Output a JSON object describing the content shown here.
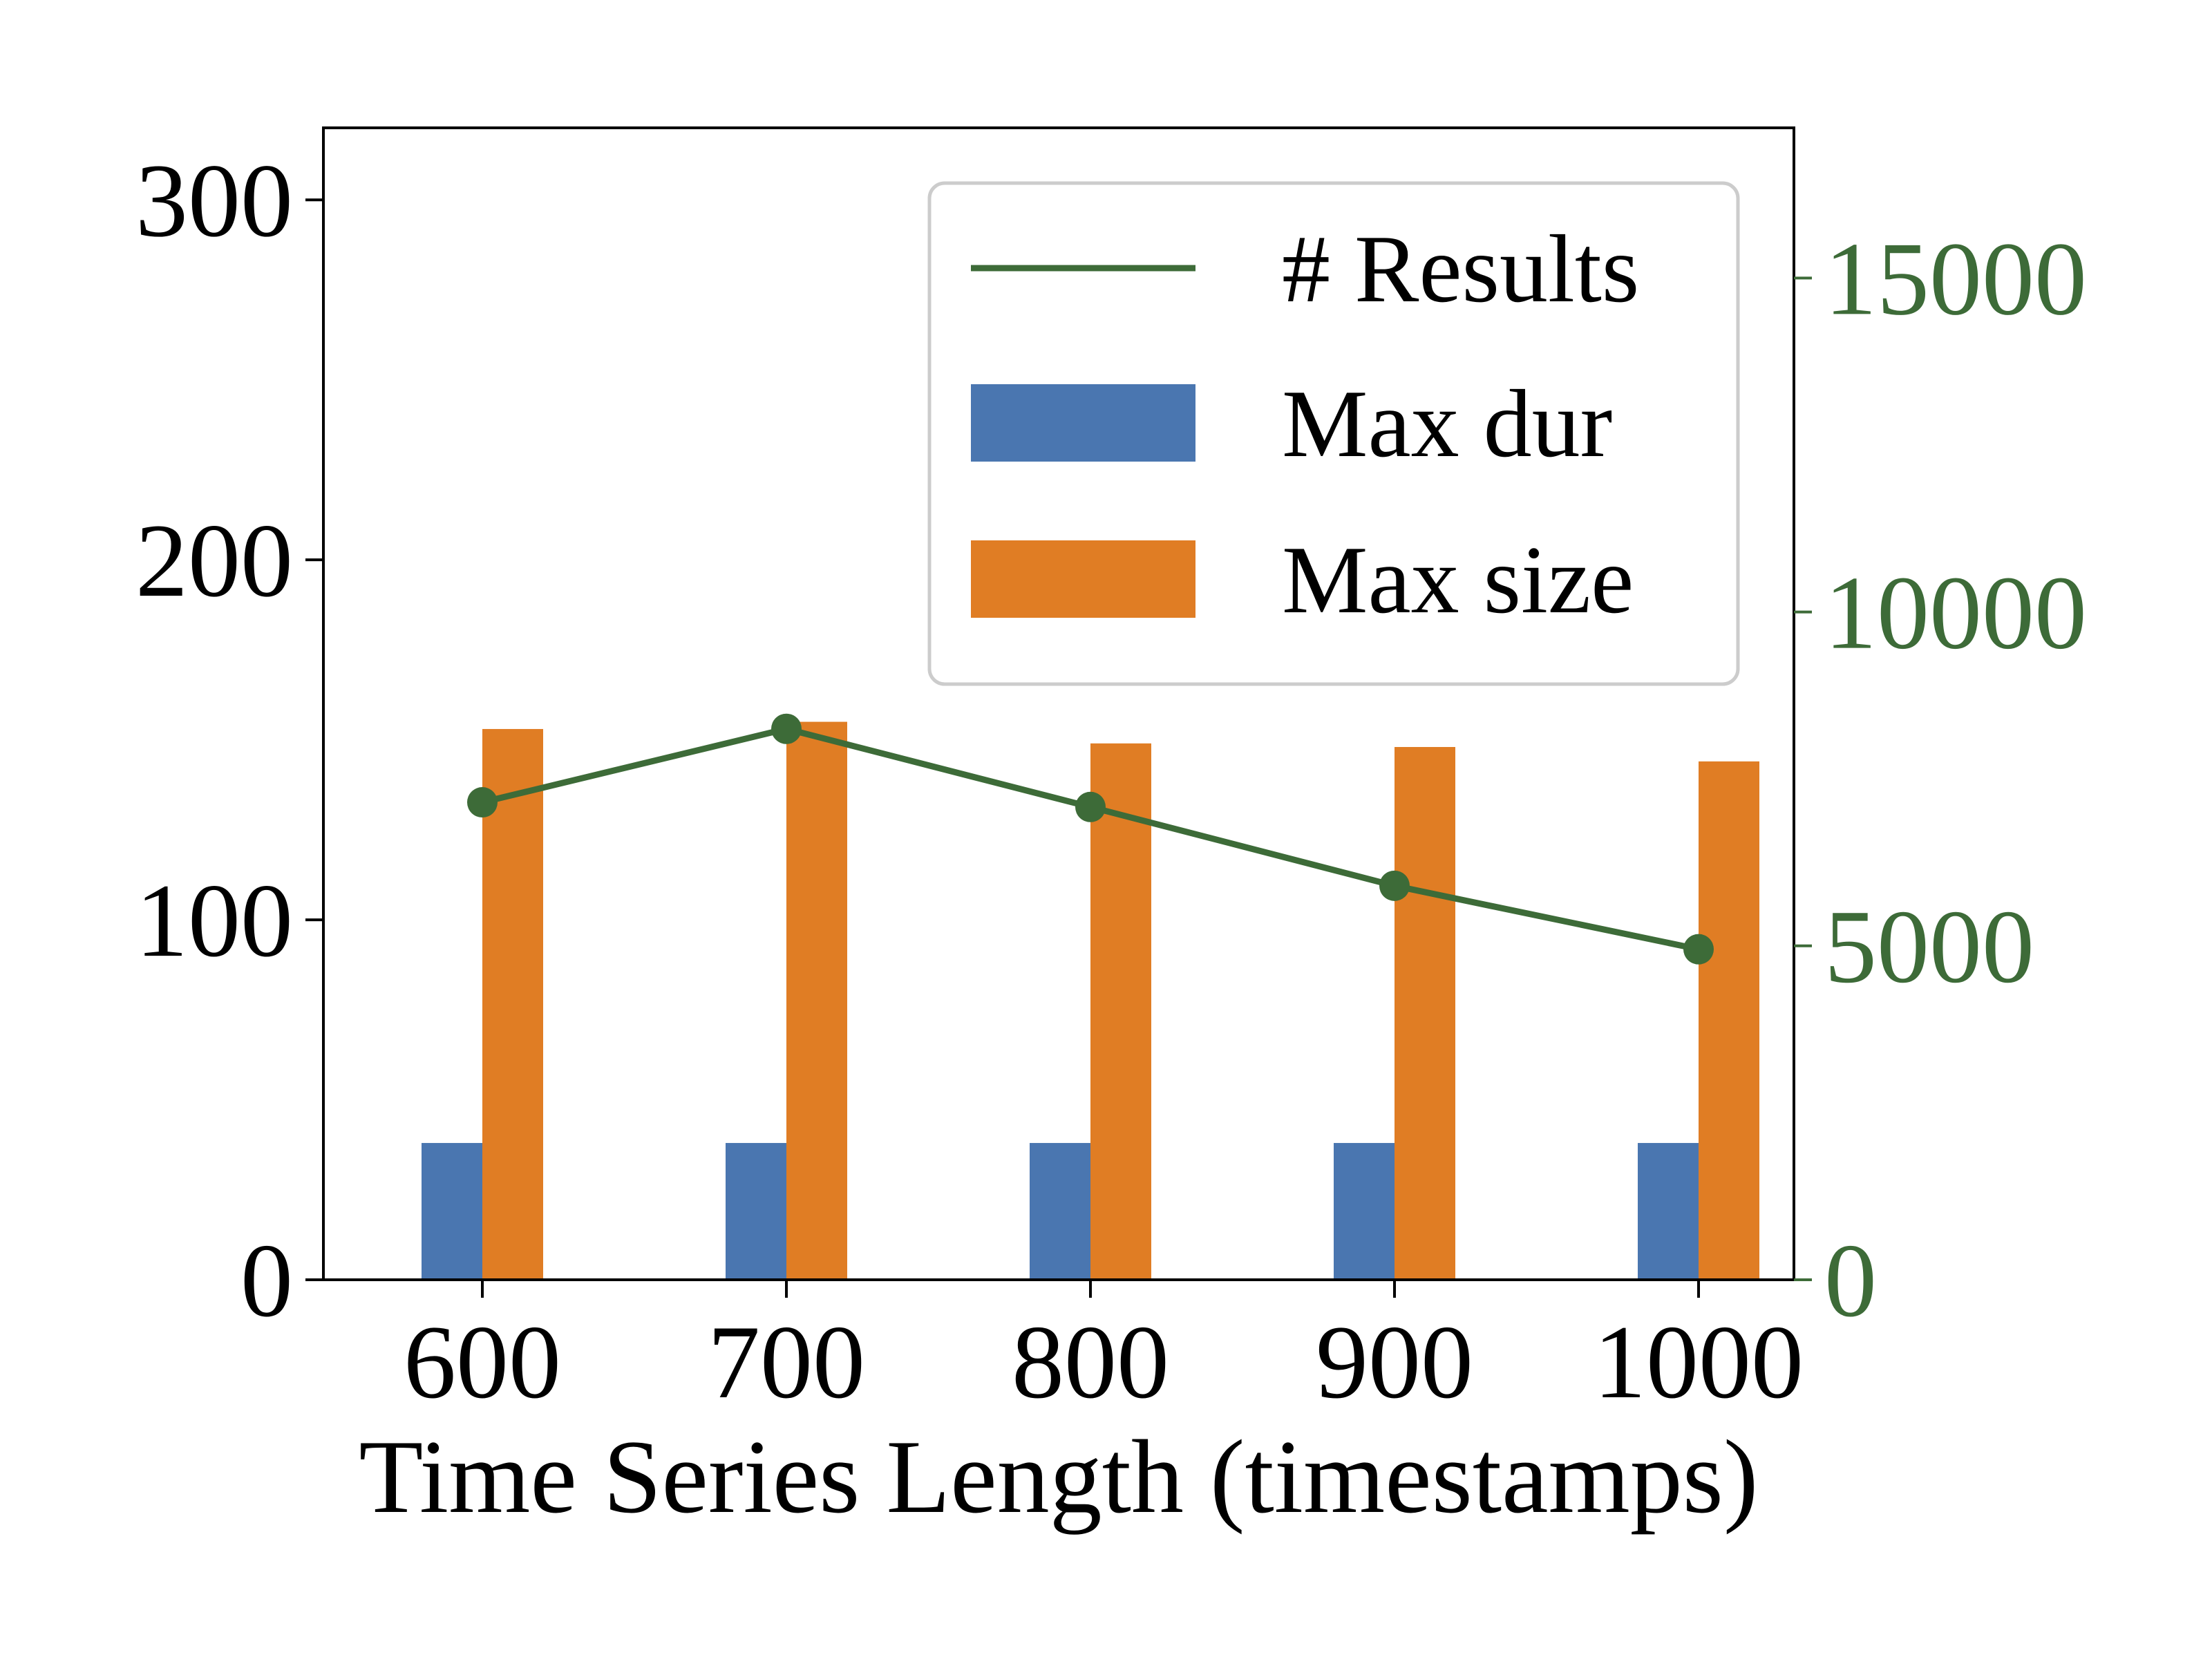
{
  "chart_data": {
    "type": "bar",
    "xlabel": "Time Series Length (timestamps)",
    "categories": [
      "600",
      "700",
      "800",
      "900",
      "1000"
    ],
    "ylim_left": [
      0,
      320
    ],
    "yticks_left": [
      "0",
      "100",
      "200",
      "300"
    ],
    "ylim_right": [
      0,
      17250
    ],
    "yticks_right": [
      "0",
      "5000",
      "10000",
      "15000"
    ],
    "grid": false,
    "legend_position": "upper-right",
    "series": [
      {
        "name": "Max dur",
        "kind": "bar",
        "axis": "left",
        "color": "#4a76b0",
        "values": [
          38,
          38,
          38,
          38,
          38
        ]
      },
      {
        "name": "Max size",
        "kind": "bar",
        "axis": "left",
        "color": "#e07d24",
        "values": [
          153,
          155,
          149,
          148,
          144
        ]
      },
      {
        "name": "# Results",
        "kind": "line",
        "axis": "right",
        "color": "#3d6b38",
        "marker": "circle",
        "values": [
          7150,
          8250,
          7080,
          5900,
          4950
        ]
      }
    ],
    "legend_order": [
      "# Results",
      "Max dur",
      "Max size"
    ],
    "right_axis_color": "#3d6b38"
  }
}
